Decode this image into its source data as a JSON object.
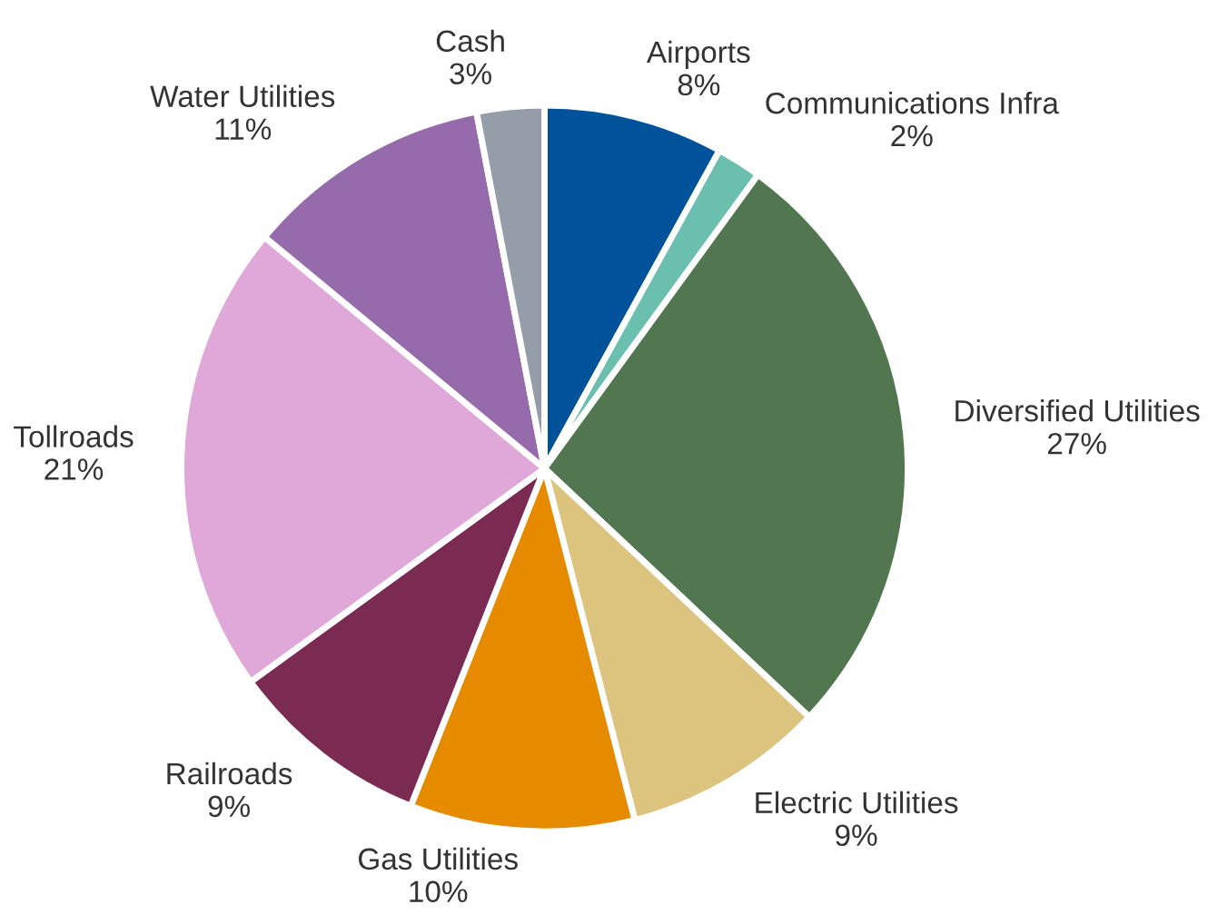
{
  "chart_data": {
    "type": "pie",
    "categories": [
      "Airports",
      "Communications Infra",
      "Diversified Utilities",
      "Electric Utilities",
      "Gas Utilities",
      "Railroads",
      "Tollroads",
      "Water Utilities",
      "Cash"
    ],
    "values": [
      8,
      2,
      27,
      9,
      10,
      9,
      21,
      11,
      3
    ],
    "value_labels": [
      "8%",
      "2%",
      "27%",
      "9%",
      "10%",
      "9%",
      "21%",
      "11%",
      "3%"
    ],
    "colors": [
      "#00539b",
      "#6bbfae",
      "#52764f",
      "#dcc47e",
      "#e68a00",
      "#7b2a52",
      "#dfa8d8",
      "#956bab",
      "#959ea8"
    ]
  }
}
